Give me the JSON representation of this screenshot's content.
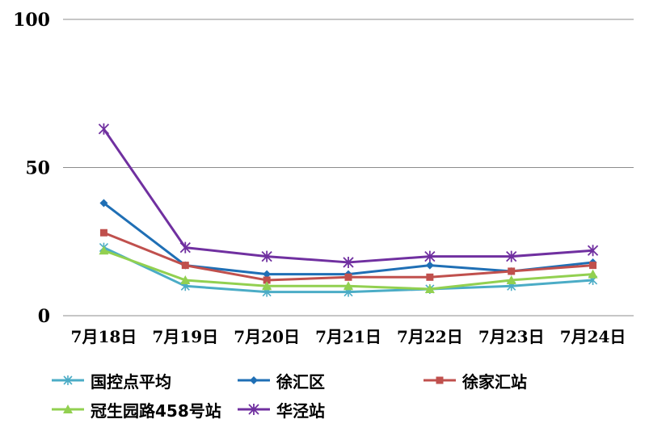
{
  "chart_data": {
    "type": "line",
    "categories": [
      "7月18日",
      "7月19日",
      "7月20日",
      "7月21日",
      "7月22日",
      "7月23日",
      "7月24日"
    ],
    "ylim": [
      0,
      100
    ],
    "yticks": [
      "0",
      "50",
      "100"
    ],
    "grid": true,
    "legend_position": "bottom",
    "series": [
      {
        "name": "国控点平均",
        "color": "#4BACC6",
        "marker": "asterisk",
        "values": [
          23,
          10,
          8,
          8,
          9,
          10,
          12
        ]
      },
      {
        "name": "徐汇区",
        "color": "#1F6FB5",
        "marker": "diamond",
        "values": [
          38,
          17,
          14,
          14,
          17,
          15,
          18
        ]
      },
      {
        "name": "徐家汇站",
        "color": "#C0504D",
        "marker": "square",
        "values": [
          28,
          17,
          12,
          13,
          13,
          15,
          17
        ]
      },
      {
        "name": "冠生园路458号站",
        "color": "#92D050",
        "marker": "triangle",
        "values": [
          22,
          12,
          10,
          10,
          9,
          12,
          14
        ]
      },
      {
        "name": "华泾站",
        "color": "#7030A0",
        "marker": "star",
        "values": [
          63,
          23,
          20,
          18,
          20,
          20,
          22
        ]
      }
    ]
  }
}
